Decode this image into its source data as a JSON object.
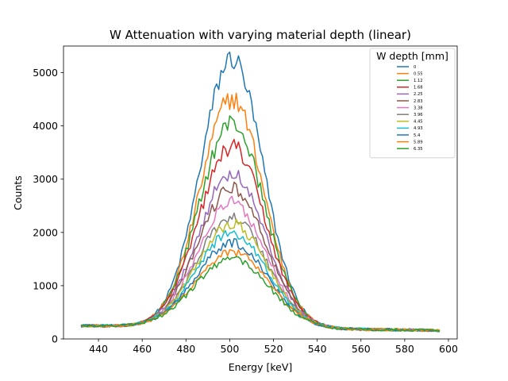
{
  "colors": {
    "palette": [
      "#1f77b4",
      "#ff7f0e",
      "#2ca02c",
      "#d62728",
      "#9467bd",
      "#8c564b",
      "#e377c2",
      "#7f7f7f",
      "#bcbd22",
      "#17becf",
      "#1f77b4",
      "#ff7f0e",
      "#2ca02c"
    ]
  },
  "chart_data": {
    "type": "line",
    "title": "W Attenuation with varying material depth (linear)",
    "xlabel": "Energy [keV]",
    "ylabel": "Counts",
    "xlim": [
      424,
      604
    ],
    "ylim": [
      0,
      5500
    ],
    "xticks": [
      440,
      460,
      480,
      500,
      520,
      540,
      560,
      580,
      600
    ],
    "yticks": [
      0,
      1000,
      2000,
      3000,
      4000,
      5000
    ],
    "grid": false,
    "legend": {
      "title": "W depth [mm]",
      "placement": "upper right"
    },
    "x_range": [
      432,
      596
    ],
    "peak_center": 501,
    "series": [
      {
        "name": "0",
        "peak": 5050,
        "baseline": 250,
        "sigma": 14.2
      },
      {
        "name": "0.55",
        "peak": 4300,
        "baseline": 250,
        "sigma": 14.5
      },
      {
        "name": "1.12",
        "peak": 3850,
        "baseline": 250,
        "sigma": 14.8
      },
      {
        "name": "1.68",
        "peak": 3400,
        "baseline": 250,
        "sigma": 15.0
      },
      {
        "name": "2.25",
        "peak": 2900,
        "baseline": 250,
        "sigma": 15.2
      },
      {
        "name": "2.83",
        "peak": 2620,
        "baseline": 250,
        "sigma": 15.4
      },
      {
        "name": "3.38",
        "peak": 2350,
        "baseline": 250,
        "sigma": 15.6
      },
      {
        "name": "3.96",
        "peak": 2080,
        "baseline": 250,
        "sigma": 15.8
      },
      {
        "name": "4.45",
        "peak": 1950,
        "baseline": 250,
        "sigma": 16.0
      },
      {
        "name": "4.93",
        "peak": 1780,
        "baseline": 250,
        "sigma": 16.2
      },
      {
        "name": "5.4",
        "peak": 1590,
        "baseline": 250,
        "sigma": 16.4
      },
      {
        "name": "5.89",
        "peak": 1420,
        "baseline": 250,
        "sigma": 16.6
      },
      {
        "name": "6.35",
        "peak": 1300,
        "baseline": 250,
        "sigma": 16.8
      }
    ]
  }
}
